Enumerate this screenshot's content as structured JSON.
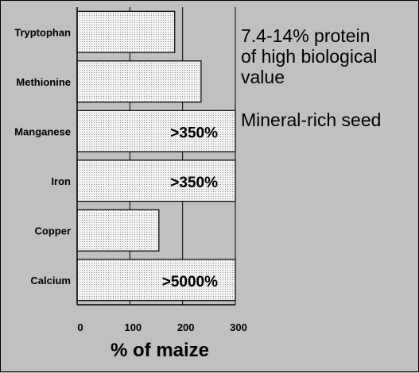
{
  "chart_data": {
    "type": "bar",
    "orientation": "horizontal",
    "categories": [
      "Tryptophan",
      "Methionine",
      "Manganese",
      "Iron",
      "Copper",
      "Calcium"
    ],
    "values": [
      185,
      235,
      300,
      300,
      155,
      300
    ],
    "data_labels": [
      "",
      "",
      ">350%",
      ">350%",
      "",
      ">5000%"
    ],
    "xlabel": "% of maize",
    "xlim": [
      0,
      300
    ],
    "xticks": [
      0,
      100,
      200,
      300
    ],
    "grid": true,
    "bar_fill": "#f2f2f2",
    "plot_background": "#c0c0c0"
  },
  "annotations": [
    {
      "lines": [
        "7.4-14% protein",
        "of high biological",
        "value"
      ]
    },
    {
      "lines": [
        "Mineral-rich seed"
      ]
    }
  ]
}
